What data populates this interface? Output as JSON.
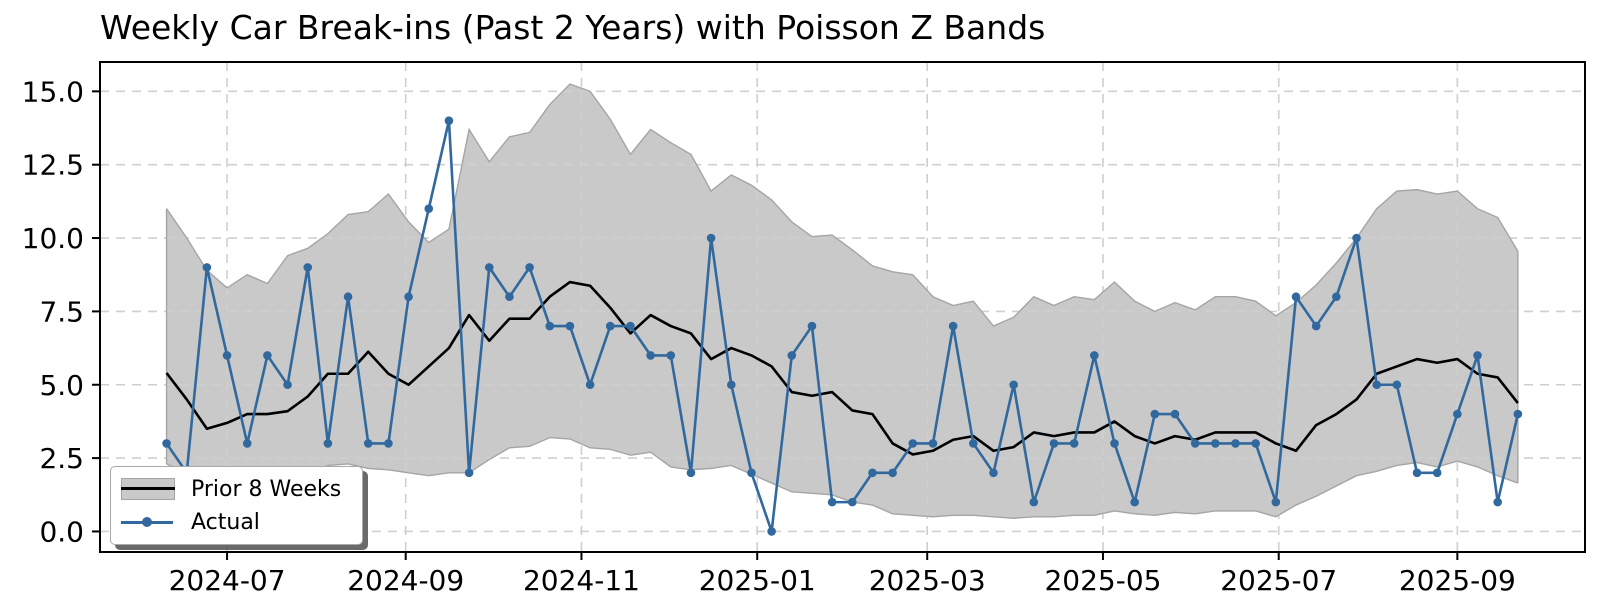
{
  "title": "Weekly Car Break-ins (Past 2 Years) with Poisson Z Bands",
  "legend": {
    "items": [
      {
        "label": "Prior 8 Weeks",
        "swatch": "gray-band-with-black-line"
      },
      {
        "label": "Actual",
        "swatch": "blue-line-with-dot-marker"
      }
    ]
  },
  "colors": {
    "actual_line": "#31699e",
    "prior_mean_line": "#000000",
    "band_fill": "#c9c9c9",
    "band_edge": "#a5a5a5",
    "grid": "#cfcfcf",
    "spine": "#000000",
    "background": "#ffffff",
    "text": "#000000"
  },
  "chart_data": {
    "type": "line",
    "title": "Weekly Car Break-ins (Past 2 Years) with Poisson Z Bands",
    "x_unit": "week",
    "x_tick_labels": [
      "2024-07",
      "2024-09",
      "2024-11",
      "2025-01",
      "2025-03",
      "2025-05",
      "2025-07",
      "2025-09"
    ],
    "x_tick_day_offsets": [
      21,
      83,
      144,
      205,
      264,
      325,
      386,
      448
    ],
    "x_range_days": [
      -23.1,
      492.3
    ],
    "week_day_step": 7,
    "y_tick_labels": [
      "0.0",
      "2.5",
      "5.0",
      "7.5",
      "10.0",
      "12.5",
      "15.0"
    ],
    "y_tick_values": [
      0,
      2.5,
      5,
      7.5,
      10,
      12.5,
      15
    ],
    "y_range": [
      -0.7,
      16.0
    ],
    "grid": "dashed",
    "legend_position": "lower-left",
    "series": [
      {
        "name": "Actual",
        "role": "actual",
        "values": [
          3,
          2,
          9,
          6,
          3,
          6,
          5,
          9,
          3,
          8,
          3,
          3,
          8,
          11,
          14,
          2,
          9,
          8,
          9,
          7,
          7,
          5,
          7,
          7,
          6,
          6,
          2,
          10,
          5,
          2,
          0,
          6,
          7,
          1,
          1,
          2,
          2,
          3,
          3,
          7,
          3,
          2,
          5,
          1,
          3,
          3,
          6,
          3,
          1,
          4,
          4,
          3,
          3,
          3,
          3,
          1,
          8,
          7,
          8,
          10,
          5,
          5,
          2,
          2,
          4,
          6,
          1,
          4
        ]
      },
      {
        "name": "Prior 8 Weeks",
        "role": "rolling-mean",
        "values": [
          5.4,
          4.5,
          3.5,
          3.7,
          4.0,
          4.0,
          4.1,
          4.6,
          5.375,
          5.375,
          6.125,
          5.375,
          5.0,
          5.625,
          6.25,
          7.375,
          6.5,
          7.25,
          7.25,
          8.0,
          8.5,
          8.375,
          7.625,
          6.75,
          7.375,
          7.0,
          6.75,
          5.875,
          6.25,
          6.0,
          5.625,
          4.75,
          4.625,
          4.75,
          4.125,
          4.0,
          3.0,
          2.625,
          2.75,
          3.125,
          3.25,
          2.75,
          2.875,
          3.375,
          3.25,
          3.375,
          3.375,
          3.75,
          3.25,
          3.0,
          3.25,
          3.125,
          3.375,
          3.375,
          3.375,
          3.0,
          2.75,
          3.625,
          4.0,
          4.5,
          5.375,
          5.625,
          5.875,
          5.75,
          5.875,
          5.375,
          5.25,
          4.375
        ]
      },
      {
        "name": "Poisson Z band upper",
        "role": "band-upper",
        "values": [
          11.0,
          10.0,
          8.9,
          8.3,
          8.75,
          8.45,
          9.4,
          9.65,
          10.15,
          10.8,
          10.9,
          11.5,
          10.55,
          9.85,
          10.3,
          13.7,
          12.6,
          13.45,
          13.6,
          14.55,
          15.25,
          15.0,
          14.05,
          12.85,
          13.7,
          13.25,
          12.85,
          11.6,
          12.15,
          11.8,
          11.3,
          10.55,
          10.05,
          10.1,
          9.6,
          9.05,
          8.85,
          8.75,
          8.0,
          7.7,
          7.85,
          7.0,
          7.3,
          8.0,
          7.7,
          8.0,
          7.9,
          8.5,
          7.85,
          7.5,
          7.8,
          7.55,
          8.0,
          8.0,
          7.85,
          7.35,
          7.8,
          8.4,
          9.15,
          10.0,
          11.0,
          11.6,
          11.65,
          11.5,
          11.6,
          11.0,
          10.7,
          9.55
        ]
      },
      {
        "name": "Poisson Z band lower",
        "role": "band-lower",
        "values": [
          2.3,
          2.0,
          1.5,
          1.55,
          1.7,
          1.65,
          1.6,
          1.9,
          2.25,
          2.3,
          2.15,
          2.1,
          2.0,
          1.9,
          2.0,
          2.0,
          2.45,
          2.85,
          2.9,
          3.2,
          3.15,
          2.85,
          2.8,
          2.6,
          2.7,
          2.2,
          2.1,
          2.15,
          2.25,
          1.95,
          1.65,
          1.35,
          1.3,
          1.25,
          1.0,
          0.9,
          0.6,
          0.55,
          0.5,
          0.55,
          0.55,
          0.5,
          0.45,
          0.5,
          0.5,
          0.55,
          0.55,
          0.7,
          0.6,
          0.55,
          0.65,
          0.6,
          0.7,
          0.7,
          0.7,
          0.5,
          0.9,
          1.2,
          1.55,
          1.9,
          2.05,
          2.25,
          2.35,
          2.2,
          2.4,
          2.2,
          1.9,
          1.65
        ]
      }
    ]
  }
}
